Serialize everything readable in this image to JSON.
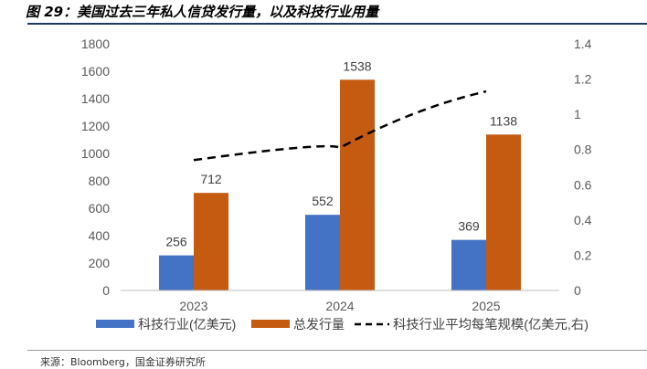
{
  "title": "图 29：美国过去三年私人信贷发行量，以及科技行业用量",
  "source": "来源：Bloomberg，国金证券研究所",
  "chart_data": {
    "type": "bar",
    "categories": [
      "2023",
      "2024",
      "2025"
    ],
    "series": [
      {
        "name": "科技行业(亿美元)",
        "values": [
          256,
          552,
          369
        ],
        "color": "#4472c4",
        "axis": "left"
      },
      {
        "name": "总发行量",
        "values": [
          712,
          1538,
          1138
        ],
        "color": "#c55a11",
        "axis": "left"
      },
      {
        "name": "科技行业平均每笔规模(亿美元,右)",
        "type": "line",
        "style": "dashed",
        "values": [
          0.74,
          0.81,
          1.13
        ],
        "color": "#000000",
        "axis": "right"
      }
    ],
    "left_axis": {
      "min": 0,
      "max": 1800,
      "ticks": [
        "0",
        "200",
        "400",
        "600",
        "800",
        "1000",
        "1200",
        "1400",
        "1600",
        "1800"
      ]
    },
    "right_axis": {
      "min": 0,
      "max": 1.4,
      "ticks": [
        "0",
        "0.2",
        "0.4",
        "0.6",
        "0.8",
        "1",
        "1.2",
        "1.4"
      ]
    },
    "data_labels": true,
    "grid": false,
    "legend_position": "bottom"
  }
}
